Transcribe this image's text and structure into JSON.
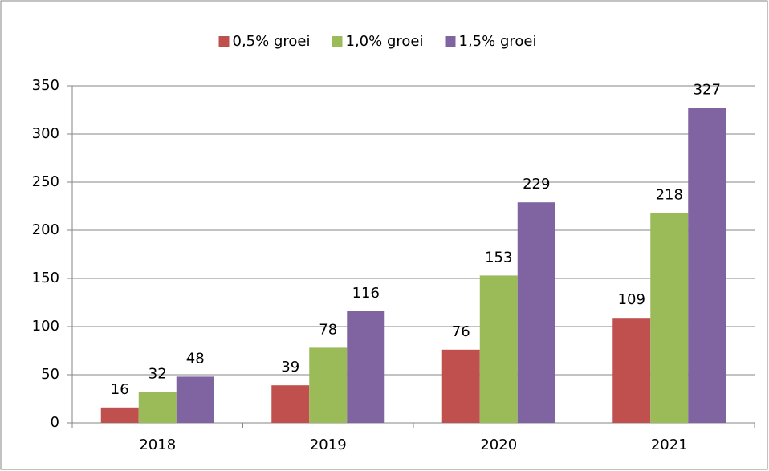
{
  "chart_data": {
    "type": "bar",
    "categories": [
      "2018",
      "2019",
      "2020",
      "2021"
    ],
    "series": [
      {
        "name": "0,5% groei",
        "color": "#c0504d",
        "values": [
          16,
          39,
          76,
          109
        ]
      },
      {
        "name": "1,0% groei",
        "color": "#9bbb59",
        "values": [
          32,
          78,
          153,
          218
        ]
      },
      {
        "name": "1,5% groei",
        "color": "#8064a2",
        "values": [
          48,
          116,
          229,
          327
        ]
      }
    ],
    "ylim": [
      0,
      350
    ],
    "yticks": [
      0,
      50,
      100,
      150,
      200,
      250,
      300,
      350
    ],
    "grid": true,
    "legend": "top"
  }
}
